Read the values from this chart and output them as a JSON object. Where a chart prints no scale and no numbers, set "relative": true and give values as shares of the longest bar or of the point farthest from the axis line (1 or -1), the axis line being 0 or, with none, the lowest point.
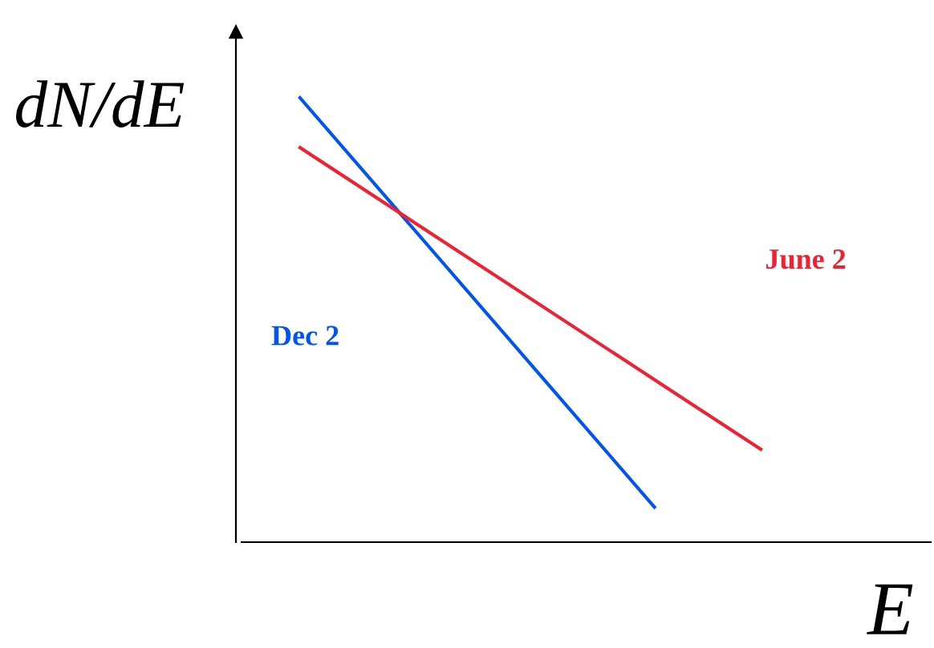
{
  "chart_data": {
    "type": "line",
    "relative": true,
    "xlabel": "E",
    "ylabel": "dN/dE",
    "legend": false,
    "marker": "none",
    "line_style": "solid",
    "categories": [
      null,
      null,
      null,
      null,
      null,
      null,
      null,
      null,
      null,
      null,
      null,
      null,
      null,
      null
    ],
    "series": [
      {
        "name": "Dec 2",
        "color": "#0055ee",
        "values": [
          1,
          null,
          null,
          null,
          null,
          null,
          null,
          null,
          null,
          null,
          0.079,
          null,
          null,
          null
        ]
      },
      {
        "name": "June 2",
        "color": "#ee2233",
        "values": [
          0.888,
          null,
          null,
          null,
          null,
          null,
          null,
          null,
          null,
          null,
          null,
          null,
          null,
          0.209
        ]
      }
    ]
  }
}
